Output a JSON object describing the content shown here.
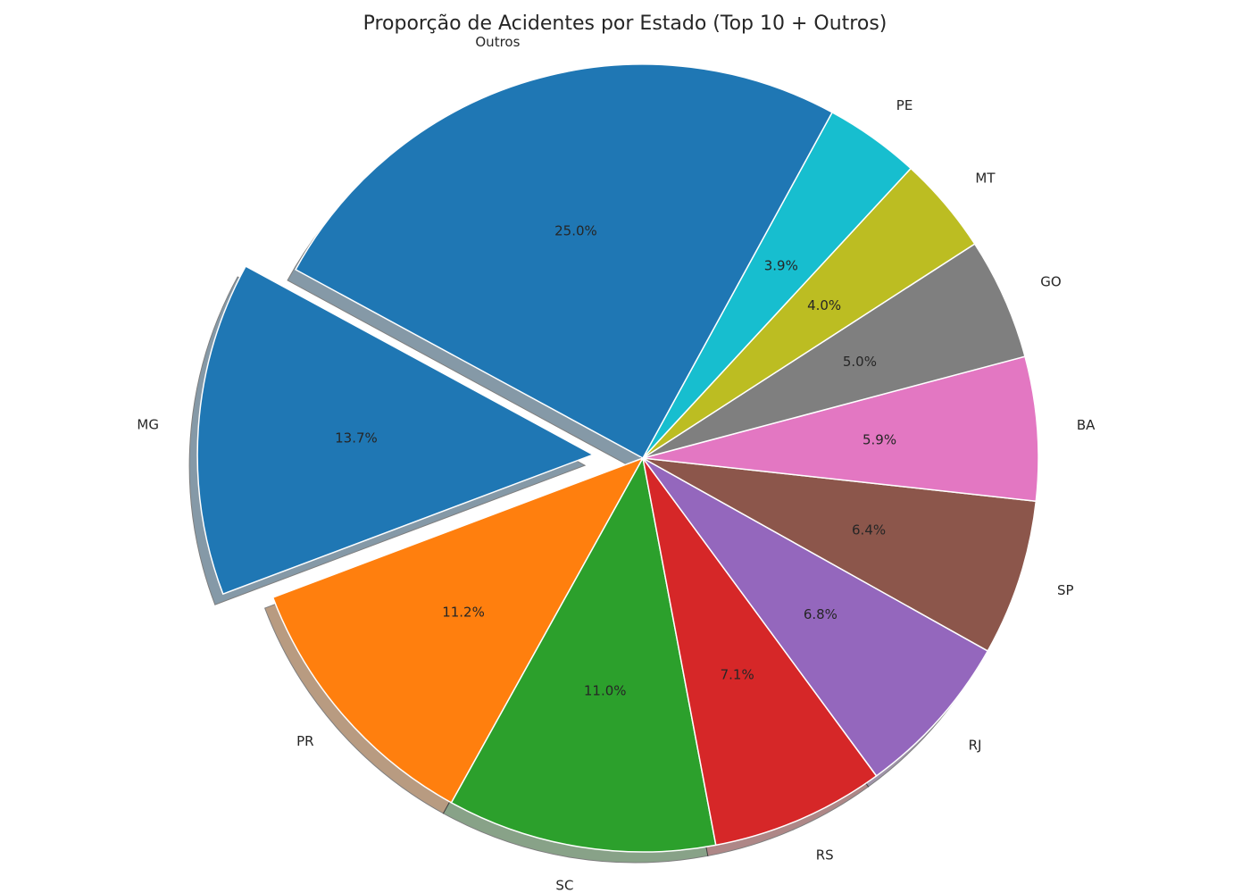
{
  "chart_data": {
    "type": "pie",
    "title": "Proporção de Acidentes por Estado (Top 10 + Outros)",
    "categories": [
      "MG",
      "PR",
      "SC",
      "RS",
      "RJ",
      "SP",
      "BA",
      "GO",
      "MT",
      "PE",
      "Outros"
    ],
    "values": [
      13.7,
      11.2,
      11.0,
      7.1,
      6.8,
      6.4,
      5.9,
      5.0,
      4.0,
      3.9,
      25.0
    ],
    "value_labels": [
      "13.7%",
      "11.2%",
      "11.0%",
      "7.1%",
      "6.8%",
      "6.4%",
      "5.9%",
      "5.0%",
      "4.0%",
      "3.9%",
      "25.0%"
    ],
    "colors": [
      "#1f77b4",
      "#ff7f0e",
      "#2ca02c",
      "#d62728",
      "#9467bd",
      "#8c564b",
      "#e377c2",
      "#7f7f7f",
      "#bcbd22",
      "#17becf",
      "#1f77b4"
    ],
    "exploded": [
      "MG"
    ],
    "shadow": true,
    "direction": "counterclockwise",
    "legend": "none"
  }
}
